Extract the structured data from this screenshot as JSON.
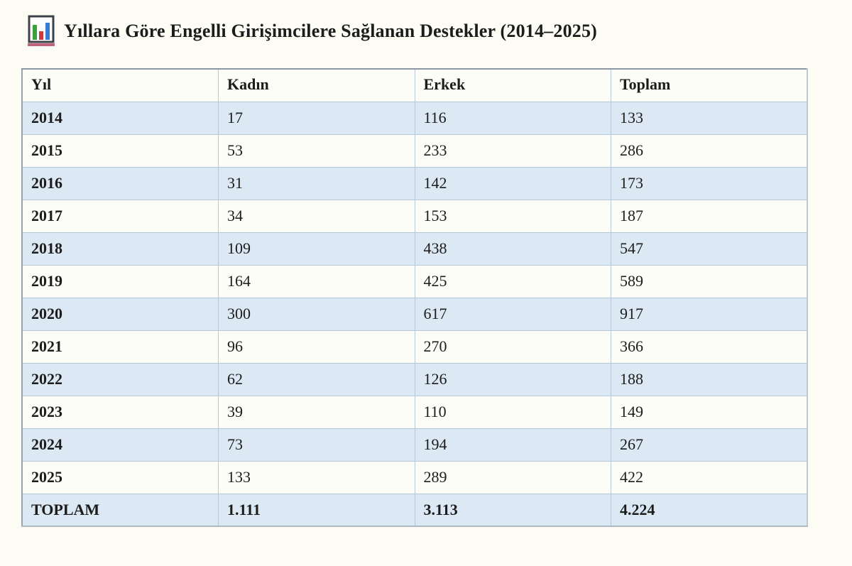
{
  "header": {
    "icon": "bar-chart-icon",
    "title": "Yıllara Göre Engelli Girişimcilere Sağlanan Destekler (2014–2025)"
  },
  "table": {
    "columns": [
      "Yıl",
      "Kadın",
      "Erkek",
      "Toplam"
    ],
    "rows": [
      {
        "yil": "2014",
        "kadin": "17",
        "erkek": "116",
        "toplam": "133"
      },
      {
        "yil": "2015",
        "kadin": "53",
        "erkek": "233",
        "toplam": "286"
      },
      {
        "yil": "2016",
        "kadin": "31",
        "erkek": "142",
        "toplam": "173"
      },
      {
        "yil": "2017",
        "kadin": "34",
        "erkek": "153",
        "toplam": "187"
      },
      {
        "yil": "2018",
        "kadin": "109",
        "erkek": "438",
        "toplam": "547"
      },
      {
        "yil": "2019",
        "kadin": "164",
        "erkek": "425",
        "toplam": "589"
      },
      {
        "yil": "2020",
        "kadin": "300",
        "erkek": "617",
        "toplam": "917"
      },
      {
        "yil": "2021",
        "kadin": "96",
        "erkek": "270",
        "toplam": "366"
      },
      {
        "yil": "2022",
        "kadin": "62",
        "erkek": "126",
        "toplam": "188"
      },
      {
        "yil": "2023",
        "kadin": "39",
        "erkek": "110",
        "toplam": "149"
      },
      {
        "yil": "2024",
        "kadin": "73",
        "erkek": "194",
        "toplam": "267"
      },
      {
        "yil": "2025",
        "kadin": "133",
        "erkek": "289",
        "toplam": "422"
      }
    ],
    "total_row": {
      "yil": "TOPLAM",
      "kadin": "1.111",
      "erkek": "3.113",
      "toplam": "4.224"
    }
  },
  "chart_data": {
    "type": "table",
    "title": "Yıllara Göre Engelli Girişimcilere Sağlanan Destekler (2014–2025)",
    "categories": [
      "2014",
      "2015",
      "2016",
      "2017",
      "2018",
      "2019",
      "2020",
      "2021",
      "2022",
      "2023",
      "2024",
      "2025"
    ],
    "series": [
      {
        "name": "Kadın",
        "values": [
          17,
          53,
          31,
          34,
          109,
          164,
          300,
          96,
          62,
          39,
          73,
          133
        ],
        "total": 1111
      },
      {
        "name": "Erkek",
        "values": [
          116,
          233,
          142,
          153,
          438,
          425,
          617,
          270,
          126,
          110,
          194,
          289
        ],
        "total": 3113
      },
      {
        "name": "Toplam",
        "values": [
          133,
          286,
          173,
          187,
          547,
          589,
          917,
          366,
          188,
          149,
          267,
          422
        ],
        "total": 4224
      }
    ]
  },
  "colors": {
    "page_background": "#fdfcf4",
    "row_banded": "#dce8f4",
    "row_plain": "#fdfdf8",
    "inner_border": "#b6c8da",
    "outer_border": "#8d97a1",
    "text": "#1c1c1c",
    "icon_green": "#3aa23a",
    "icon_red": "#cc3a3a",
    "icon_blue": "#3b7bd4",
    "icon_base": "#c2637e"
  }
}
